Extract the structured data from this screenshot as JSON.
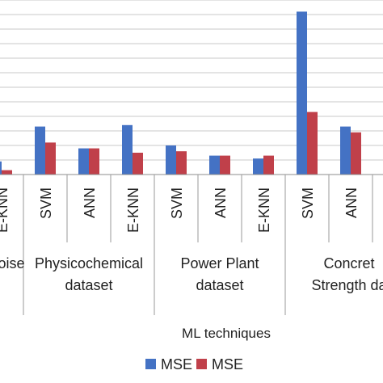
{
  "chart_data": {
    "type": "bar",
    "xlabel": "ML techniques",
    "ylim": [
      0,
      12
    ],
    "grid": true,
    "legend": "bottom",
    "groups": [
      {
        "label": "oise",
        "categories": [
          "E-KNN"
        ]
      },
      {
        "label": "Physicochemical\ndataset",
        "categories": [
          "SVM",
          "ANN",
          "E-KNN"
        ]
      },
      {
        "label": "Power Plant\ndataset",
        "categories": [
          "SVM",
          "ANN",
          "E-KNN"
        ]
      },
      {
        "label": "Concret\nStrength da",
        "categories": [
          "SVM",
          "ANN"
        ]
      }
    ],
    "categories": [
      "E-KNN",
      "SVM",
      "ANN",
      "E-KNN",
      "SVM",
      "ANN",
      "E-KNN",
      "SVM",
      "ANN"
    ],
    "series": [
      {
        "name": "MSE",
        "color": "#4472C4",
        "values": [
          0.9,
          3.3,
          1.8,
          3.4,
          2.0,
          1.3,
          1.1,
          11.2,
          3.3
        ]
      },
      {
        "name": "MSE",
        "color": "#C0404A",
        "values": [
          0.3,
          2.2,
          1.8,
          1.5,
          1.6,
          1.3,
          1.3,
          4.3,
          2.9
        ]
      }
    ]
  }
}
